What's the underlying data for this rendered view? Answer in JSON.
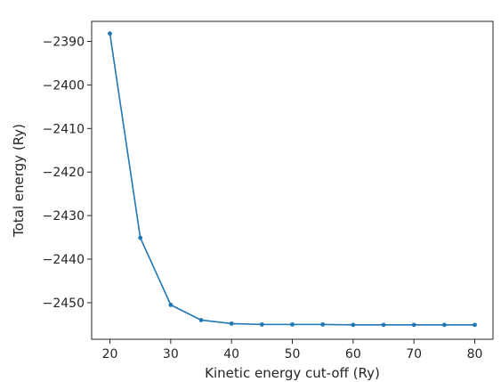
{
  "chart_data": {
    "type": "line",
    "title": "",
    "xlabel": "Kinetic energy cut-off (Ry)",
    "ylabel": "Total energy (Ry)",
    "xlim": [
      17.0,
      83.0
    ],
    "ylim": [
      -2458.4,
      -2385.4
    ],
    "x_ticks": [
      20,
      30,
      40,
      50,
      60,
      70,
      80
    ],
    "y_ticks": [
      -2390,
      -2400,
      -2410,
      -2420,
      -2430,
      -2440,
      -2450
    ],
    "x_tick_labels": [
      "20",
      "30",
      "40",
      "50",
      "60",
      "70",
      "80"
    ],
    "y_tick_labels": [
      "−2390",
      "−2400",
      "−2410",
      "−2420",
      "−2430",
      "−2440",
      "−2450"
    ],
    "grid": false,
    "legend": "none",
    "series": [
      {
        "color": "#1f77b4",
        "marker": "circle",
        "x": [
          20,
          25,
          30,
          35,
          40,
          45,
          50,
          55,
          60,
          65,
          70,
          75,
          80
        ],
        "y": [
          -2388.2,
          -2435.1,
          -2450.5,
          -2454.0,
          -2454.8,
          -2455.0,
          -2455.0,
          -2455.0,
          -2455.1,
          -2455.1,
          -2455.1,
          -2455.1,
          -2455.1
        ]
      }
    ]
  }
}
